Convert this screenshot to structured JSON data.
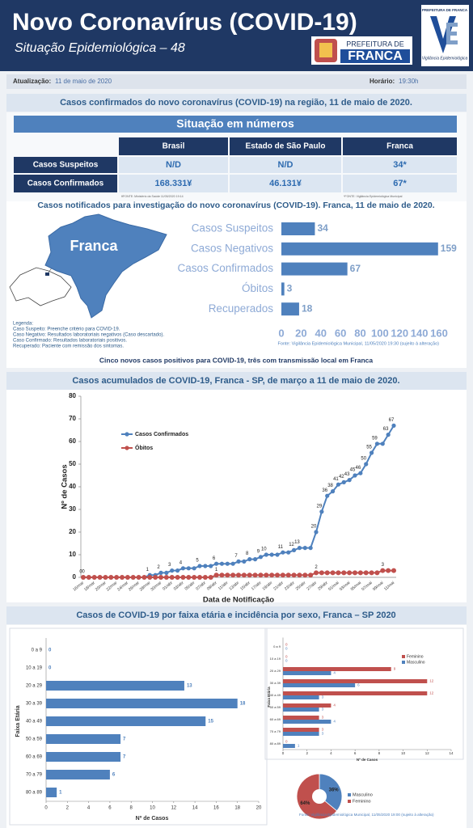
{
  "header": {
    "title": "Novo Coronavírus (COVID-19)",
    "subtitle": "Situação Epidemiológica – 48",
    "logo_top": "PREFEITURA DE FRANCA",
    "logo_name": "Vigilância Epidemiológica",
    "city_prefix": "PREFEITURA DE",
    "city": "FRANCA"
  },
  "update": {
    "label": "Atualização:",
    "date": "11 de maio de 2020",
    "time_label": "Horário:",
    "time": "19:30h"
  },
  "summary": {
    "title": "Casos confirmados do novo coronavírus (COVID-19) na região, 11 de maio de 2020.",
    "banner": "Situação em números",
    "table": {
      "columns": [
        "Brasil",
        "Estado de São Paulo",
        "Franca"
      ],
      "rows": [
        [
          "Casos Suspeitos",
          "N/D",
          "N/D",
          "34*"
        ],
        [
          "Casos Confirmados",
          "168.331¥",
          "46.131¥",
          "67*"
        ]
      ]
    },
    "notes": [
      "¥FONTE: Ministério da Saúde 11/05/2020 19:14",
      "*FONTE: Vigilância Epidemiológica Municipal"
    ]
  },
  "map_label": "Franca",
  "legend_notes": [
    "Legenda:",
    "Caso Suspeito: Preenche critério para COVID-19.",
    "Caso Negativo: Resultados laboratoriais negativos (Caso descartado).",
    "Caso Confirmado: Resultados laboratoriais positivos.",
    "Recuperado: Paciente com remissão dos sintomas."
  ],
  "highlight": "Cinco novos casos positivos para COVID-19, três com transmissão local em Franca",
  "chart_data": [
    {
      "type": "bar",
      "orientation": "horizontal",
      "title": "Casos notificados para investigação do novo coronavírus (COVID-19). Franca, 11 de maio de 2020.",
      "categories": [
        "Casos Suspeitos",
        "Casos Negativos",
        "Casos Confirmados",
        "Óbitos",
        "Recuperados"
      ],
      "values": [
        34,
        159,
        67,
        3,
        18
      ],
      "color": "#4f81bd",
      "xlim": [
        0,
        160
      ],
      "xticks": [
        0,
        20,
        40,
        60,
        80,
        100,
        120,
        140,
        160
      ],
      "source": "Fonte: Vigilância Epidemiológica Municipal, 11/05/2020 19:30  (sujeito à alteração)"
    },
    {
      "type": "line",
      "title": "Casos acumulados de COVID-19, Franca - SP, de março a 11 de maio de 2020.",
      "categories": [
        "16/mar",
        null,
        "18/mar",
        null,
        "20/mar",
        null,
        "22/mar",
        null,
        "24/mar",
        null,
        "26/mar",
        null,
        "28/mar",
        null,
        "30/mar",
        null,
        "01/abr",
        null,
        "03/abr",
        null,
        "05/abr",
        null,
        "07/abr",
        null,
        "09/abr",
        null,
        "11/abr",
        null,
        "13/abr",
        null,
        "15/abr",
        null,
        "17/abr",
        null,
        "19/abr",
        null,
        "21/abr",
        null,
        "23/abr",
        null,
        "25/abr",
        null,
        "27/abr",
        null,
        "29/abr",
        null,
        "01/mai",
        null,
        "03/mai",
        null,
        "05/mai",
        null,
        "07/mai",
        null,
        "09/mai",
        null,
        "11/mai"
      ],
      "series": [
        {
          "name": "Casos Confirmados",
          "color": "#4f81bd",
          "values": [
            0,
            0,
            0,
            0,
            0,
            0,
            0,
            0,
            0,
            0,
            0,
            0,
            1,
            1,
            2,
            2,
            3,
            3,
            4,
            4,
            4,
            5,
            5,
            5,
            6,
            6,
            6,
            6,
            7,
            7,
            8,
            8,
            9,
            10,
            10,
            10,
            11,
            11,
            12,
            13,
            13,
            13,
            20,
            29,
            36,
            38,
            41,
            42,
            43,
            45,
            46,
            50,
            55,
            59,
            59,
            63,
            67
          ]
        },
        {
          "name": "Óbitos",
          "color": "#c0504d",
          "values": [
            0,
            0,
            0,
            0,
            0,
            0,
            0,
            0,
            0,
            0,
            0,
            0,
            0,
            0,
            0,
            0,
            0,
            0,
            0,
            0,
            0,
            0,
            0,
            0,
            1,
            1,
            1,
            1,
            1,
            1,
            1,
            1,
            1,
            1,
            1,
            1,
            1,
            1,
            1,
            1,
            1,
            1,
            2,
            2,
            2,
            2,
            2,
            2,
            2,
            2,
            2,
            2,
            2,
            2,
            3,
            3,
            3
          ]
        }
      ],
      "ylim": [
        0,
        80
      ],
      "yticks": [
        0,
        10,
        20,
        30,
        40,
        50,
        60,
        70,
        80
      ],
      "xlabel": "Data de Notificação",
      "ylabel": "Nº de Casos",
      "legend": "upper left",
      "grid": false
    },
    {
      "type": "bar",
      "orientation": "horizontal",
      "title": "Casos de COVID-19 por faixa etária e incidência por sexo, Franca – SP 2020",
      "categories": [
        "0 a 9",
        "10 a 19",
        "20 a 29",
        "30 a 39",
        "40 a 49",
        "50 a 59",
        "60 a 69",
        "70 a 79",
        "80 a 89"
      ],
      "values": [
        0,
        0,
        13,
        18,
        15,
        7,
        7,
        6,
        1
      ],
      "color": "#4f81bd",
      "xlim": [
        0,
        20
      ],
      "xticks": [
        0,
        2,
        4,
        6,
        8,
        10,
        12,
        14,
        16,
        18,
        20
      ],
      "xlabel": "Nº de Casos",
      "ylabel": "Faixa Etária"
    },
    {
      "type": "bar",
      "orientation": "horizontal",
      "categories": [
        "0 a 9",
        "10 a 19",
        "20 a 29",
        "30 a 39",
        "40 a 49",
        "50 a 59",
        "60 a 69",
        "70 a 79",
        "80 a 89"
      ],
      "series": [
        {
          "name": "Feminino",
          "color": "#c0504d",
          "values": [
            0,
            0,
            9,
            12,
            12,
            4,
            3,
            3,
            0
          ]
        },
        {
          "name": "Masculino",
          "color": "#4f81bd",
          "values": [
            0,
            0,
            4,
            6,
            3,
            3,
            4,
            3,
            1
          ]
        }
      ],
      "xlim": [
        0,
        14
      ],
      "xticks": [
        0,
        2,
        4,
        6,
        8,
        10,
        12,
        14
      ],
      "xlabel": "Nº de Casos",
      "ylabel": "Faixa Etária",
      "legend": "upper right"
    },
    {
      "type": "pie",
      "categories": [
        "Masculino",
        "Feminino"
      ],
      "values": [
        36,
        64
      ],
      "value_labels": [
        "36%",
        "64%"
      ],
      "colors": [
        "#4f81bd",
        "#c0504d"
      ],
      "legend": "right",
      "source": "Fonte: Vigilância Epidemiológica Municipal, 11/05/2020 19:00  (sujeito à alteração)"
    }
  ]
}
